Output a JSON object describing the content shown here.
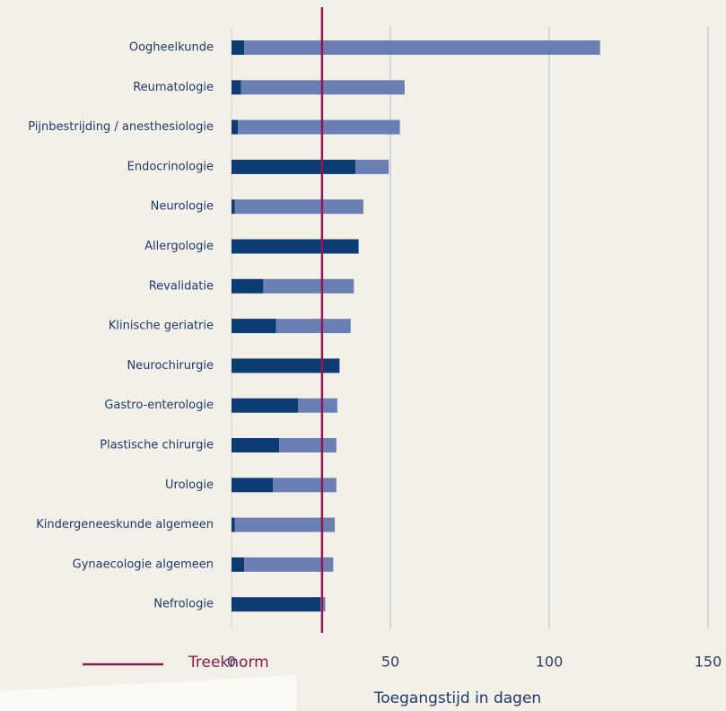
{
  "chart_data": {
    "type": "stacked-hbar",
    "categories": [
      "Oogheelkunde",
      "Reumatologie",
      "Pijnbestrijding / anesthesiologie",
      "Endocrinologie",
      "Neurologie",
      "Allergologie",
      "Revalidatie",
      "Klinische geriatrie",
      "Neurochirurgie",
      "Gastro-enterologie",
      "Plastische chirurgie",
      "Urologie",
      "Kindergeneeskunde algemeen",
      "Gynaecologie algemeen",
      "Nefrologie"
    ],
    "series": [
      {
        "color": "#0d3c75",
        "values": [
          4,
          3,
          2,
          39,
          1,
          40,
          10,
          14,
          34,
          21,
          15,
          13,
          1,
          4,
          28
        ]
      },
      {
        "color": "#6a80b4",
        "values": [
          112,
          51.5,
          51,
          10.5,
          40.5,
          0,
          28.5,
          23.5,
          0,
          12.3,
          18,
          20,
          31.5,
          28,
          1.5
        ]
      }
    ],
    "xlim": [
      0,
      150
    ],
    "xticks": [
      0,
      50,
      100,
      150
    ],
    "grid": true,
    "x_label": "Toegangstijd in dagen",
    "reference_line": {
      "label": "Treeknorm",
      "value": 28.5,
      "color": "#8b1a52"
    }
  }
}
